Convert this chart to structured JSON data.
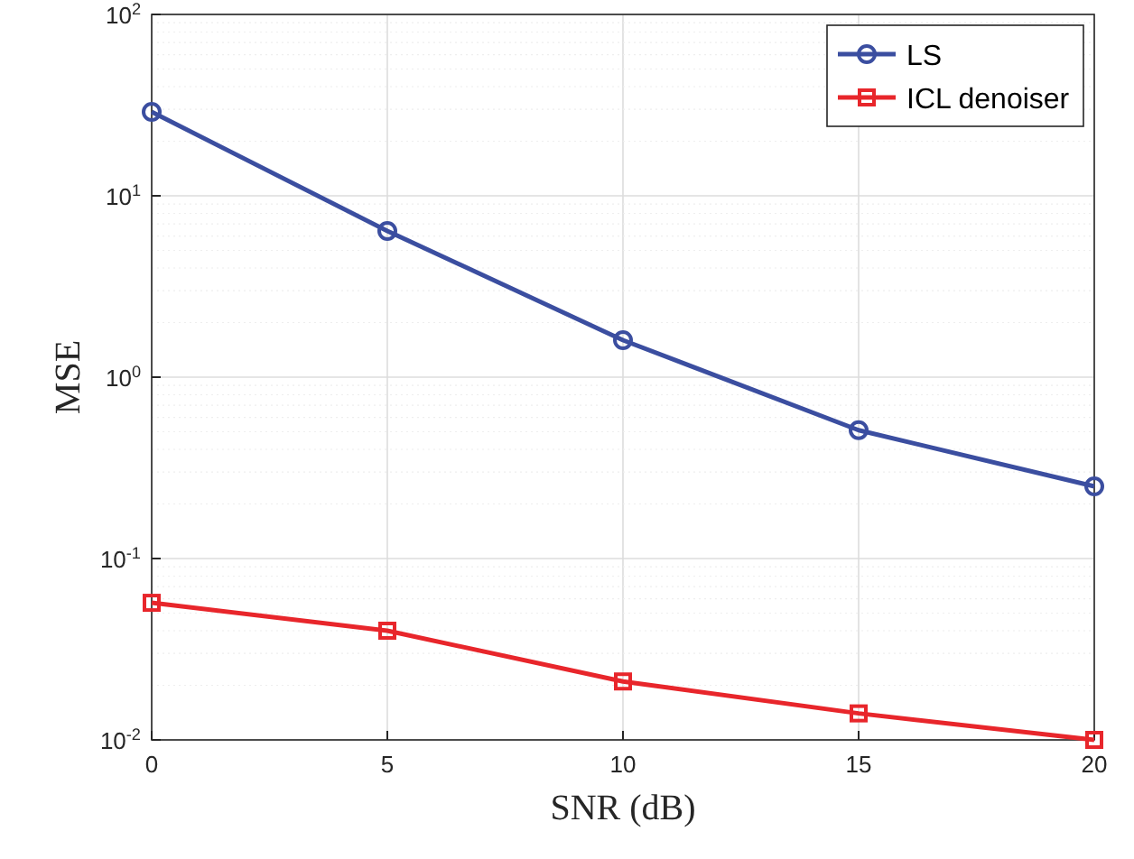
{
  "chart_data": {
    "type": "line",
    "xlabel": "SNR (dB)",
    "ylabel": "MSE",
    "x": [
      0,
      5,
      10,
      15,
      20
    ],
    "log": "y",
    "grid": true,
    "legend": "top right",
    "line_style": "solid",
    "xlim": [
      0,
      20
    ],
    "xticks": [
      0,
      5,
      10,
      15,
      20
    ],
    "ylim": [
      0.01,
      100
    ],
    "yticks": [
      {
        "value": 0.01,
        "label": "10$^{-2}$"
      },
      {
        "value": 0.1,
        "label": "10$^{-1}$"
      },
      {
        "value": 1,
        "label": "10$^{0}$"
      },
      {
        "value": 10,
        "label": "10$^{1}$"
      },
      {
        "value": 100,
        "label": "10$^{2}$"
      }
    ],
    "series": [
      {
        "name": "LS",
        "color": "#3b4ea0",
        "marker": "circle",
        "values": [
          29,
          6.4,
          1.6,
          0.51,
          0.25
        ]
      },
      {
        "name": "ICL denoiser",
        "color": "#e8262b",
        "marker": "square",
        "values": [
          0.057,
          0.04,
          0.021,
          0.014,
          0.01
        ]
      }
    ]
  }
}
